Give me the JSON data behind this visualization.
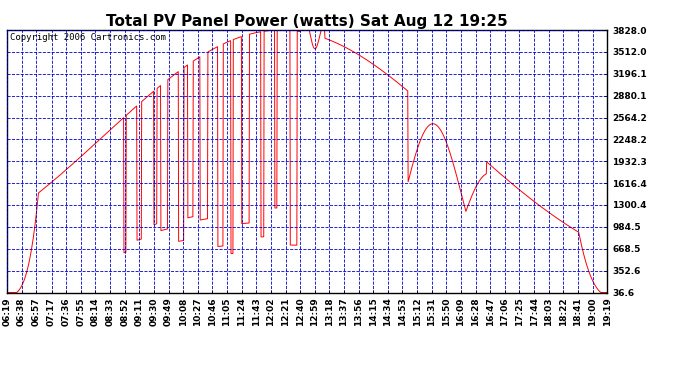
{
  "title": "Total PV Panel Power (watts) Sat Aug 12 19:25",
  "copyright": "Copyright 2006 Cartronics.com",
  "y_ticks": [
    36.6,
    352.6,
    668.5,
    984.5,
    1300.4,
    1616.4,
    1932.3,
    2248.2,
    2564.2,
    2880.1,
    3196.1,
    3512.0,
    3828.0
  ],
  "y_min": 36.6,
  "y_max": 3828.0,
  "line_color": "#ff0000",
  "grid_color": "#0000cc",
  "bg_color": "#ffffff",
  "plot_bg_color": "#ffffff",
  "title_fontsize": 11,
  "copyright_fontsize": 6.5,
  "tick_fontsize": 6.5,
  "x_labels": [
    "06:19",
    "06:38",
    "06:57",
    "07:17",
    "07:36",
    "07:55",
    "08:14",
    "08:33",
    "08:52",
    "09:11",
    "09:30",
    "09:49",
    "10:08",
    "10:27",
    "10:46",
    "11:05",
    "11:24",
    "11:43",
    "12:02",
    "12:21",
    "12:40",
    "12:59",
    "13:18",
    "13:37",
    "13:56",
    "14:15",
    "14:34",
    "14:53",
    "15:12",
    "15:31",
    "15:50",
    "16:09",
    "16:28",
    "16:47",
    "17:06",
    "17:25",
    "17:44",
    "18:03",
    "18:22",
    "18:41",
    "19:00",
    "19:19"
  ]
}
